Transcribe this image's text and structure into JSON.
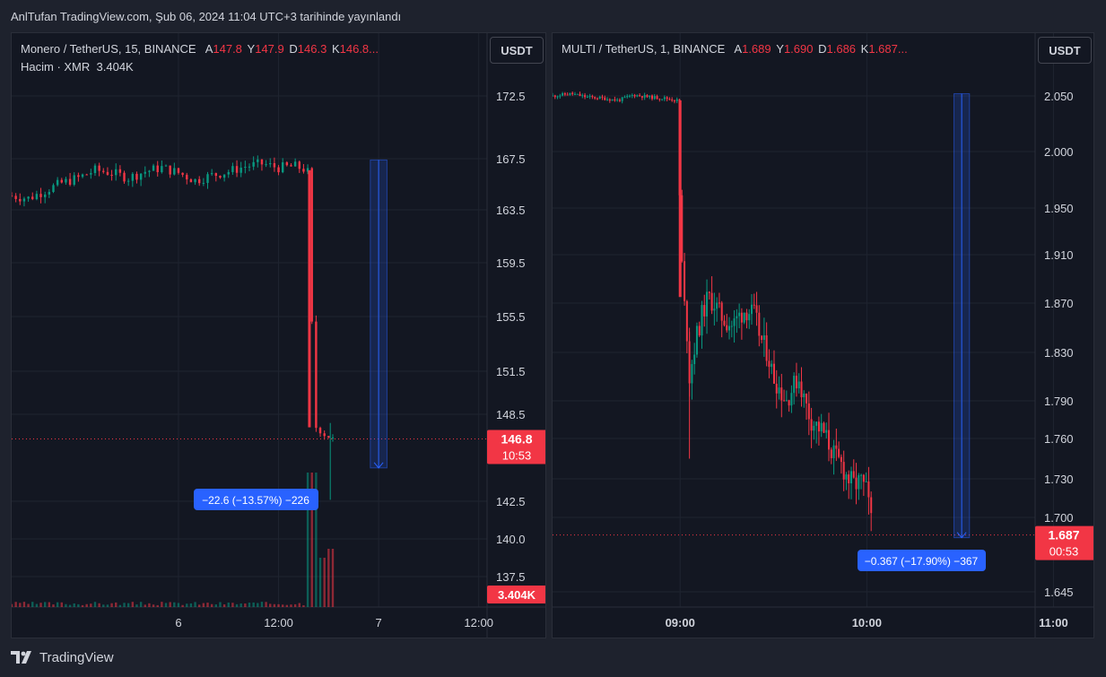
{
  "header": {
    "published": "AnlTufan TradingView.com, Şub 06, 2024 11:04 UTC+3 tarihinde yayınlandı"
  },
  "footer": {
    "brand": "TradingView"
  },
  "colors": {
    "up": "#089981",
    "down": "#f23645",
    "measure": "#2962ff",
    "bg": "#131722"
  },
  "panes": [
    {
      "symbol": "Monero / TetherUS, 15, BINANCE",
      "ohlc": [
        {
          "k": "A",
          "v": "147.8"
        },
        {
          "k": "Y",
          "v": "147.9"
        },
        {
          "k": "D",
          "v": "146.3"
        },
        {
          "k": "K",
          "v": "146.8..."
        }
      ],
      "volume_label": "Hacim · XMR",
      "volume_value": "3.404K",
      "currency": "USDT",
      "last_price": "146.8",
      "countdown": "10:53",
      "volume_tag": "3.404K",
      "measure_label": "−22.6 (−13.57%) −226"
    },
    {
      "symbol": "MULTI / TetherUS, 1, BINANCE",
      "ohlc": [
        {
          "k": "A",
          "v": "1.689"
        },
        {
          "k": "Y",
          "v": "1.690"
        },
        {
          "k": "D",
          "v": "1.686"
        },
        {
          "k": "K",
          "v": "1.687..."
        }
      ],
      "currency": "USDT",
      "last_price": "1.687",
      "countdown": "00:53",
      "measure_label": "−0.367 (−17.90%) −367"
    }
  ],
  "chart_data": [
    {
      "type": "candlestick",
      "title": "Monero / TetherUS, 15, BINANCE",
      "y_ticks": [
        172.5,
        167.5,
        163.5,
        159.5,
        155.5,
        151.5,
        148.5,
        142.5,
        140.0,
        137.5
      ],
      "x_ticks": [
        "6",
        "12:00",
        "7",
        "12:00"
      ],
      "x_range_hours": [
        -20,
        37
      ],
      "x_tick_hours": [
        0,
        12,
        24,
        36
      ],
      "price_path": [
        [
          -20,
          164.6
        ],
        [
          -18,
          164.4
        ],
        [
          -16,
          165.0
        ],
        [
          -14,
          165.6
        ],
        [
          -12,
          166.0
        ],
        [
          -10,
          166.6
        ],
        [
          -8,
          166.4
        ],
        [
          -6,
          166.0
        ],
        [
          -4,
          166.5
        ],
        [
          -2,
          166.8
        ],
        [
          0,
          166.4
        ],
        [
          2,
          165.8
        ],
        [
          4,
          166.2
        ],
        [
          6,
          166.5
        ],
        [
          8,
          166.9
        ],
        [
          10,
          167.1
        ],
        [
          12,
          166.8
        ],
        [
          14,
          166.9
        ],
        [
          15.5,
          166.6
        ],
        [
          16.0,
          155.0
        ],
        [
          16.5,
          147.6
        ],
        [
          17.5,
          147.1
        ],
        [
          18.5,
          146.8
        ]
      ],
      "last_price": 146.8,
      "volume_last": 3404,
      "measure": {
        "from_hour": 23,
        "to_hour": 25,
        "from_price": 167.4,
        "to_price": 144.8,
        "change": -22.6,
        "change_pct": -13.57,
        "ticks": -226
      }
    },
    {
      "type": "candlestick",
      "title": "MULTI / TetherUS, 1, BINANCE",
      "y_ticks": [
        2.05,
        2.0,
        1.95,
        1.91,
        1.87,
        1.83,
        1.79,
        1.76,
        1.73,
        1.7,
        1.645
      ],
      "x_ticks": [
        "09:00",
        "10:00",
        "11:00"
      ],
      "x_range_minutes": [
        -41,
        111
      ],
      "x_tick_minutes": [
        0,
        60,
        120
      ],
      "price_path": [
        [
          -41,
          2.05
        ],
        [
          -35,
          2.052
        ],
        [
          -30,
          2.049
        ],
        [
          -25,
          2.048
        ],
        [
          -20,
          2.046
        ],
        [
          -15,
          2.051
        ],
        [
          -10,
          2.049
        ],
        [
          -5,
          2.048
        ],
        [
          -1,
          2.046
        ],
        [
          0,
          1.94
        ],
        [
          1,
          1.875
        ],
        [
          2,
          1.855
        ],
        [
          3,
          1.81
        ],
        [
          5,
          1.84
        ],
        [
          7,
          1.86
        ],
        [
          9,
          1.875
        ],
        [
          11,
          1.87
        ],
        [
          13,
          1.86
        ],
        [
          15,
          1.855
        ],
        [
          17,
          1.852
        ],
        [
          19,
          1.86
        ],
        [
          21,
          1.865
        ],
        [
          24,
          1.86
        ],
        [
          26,
          1.84
        ],
        [
          28,
          1.83
        ],
        [
          30,
          1.81
        ],
        [
          32,
          1.8
        ],
        [
          34,
          1.79
        ],
        [
          36,
          1.8
        ],
        [
          38,
          1.81
        ],
        [
          40,
          1.79
        ],
        [
          42,
          1.775
        ],
        [
          44,
          1.77
        ],
        [
          46,
          1.765
        ],
        [
          48,
          1.755
        ],
        [
          50,
          1.745
        ],
        [
          52,
          1.74
        ],
        [
          54,
          1.73
        ],
        [
          56,
          1.725
        ],
        [
          58,
          1.728
        ],
        [
          60,
          1.72
        ],
        [
          62,
          1.687
        ]
      ],
      "last_price": 1.687,
      "measure": {
        "from_minute": 88,
        "to_minute": 93,
        "from_price": 2.052,
        "to_price": 1.685,
        "change": -0.367,
        "change_pct": -17.9,
        "ticks": -367
      }
    }
  ]
}
